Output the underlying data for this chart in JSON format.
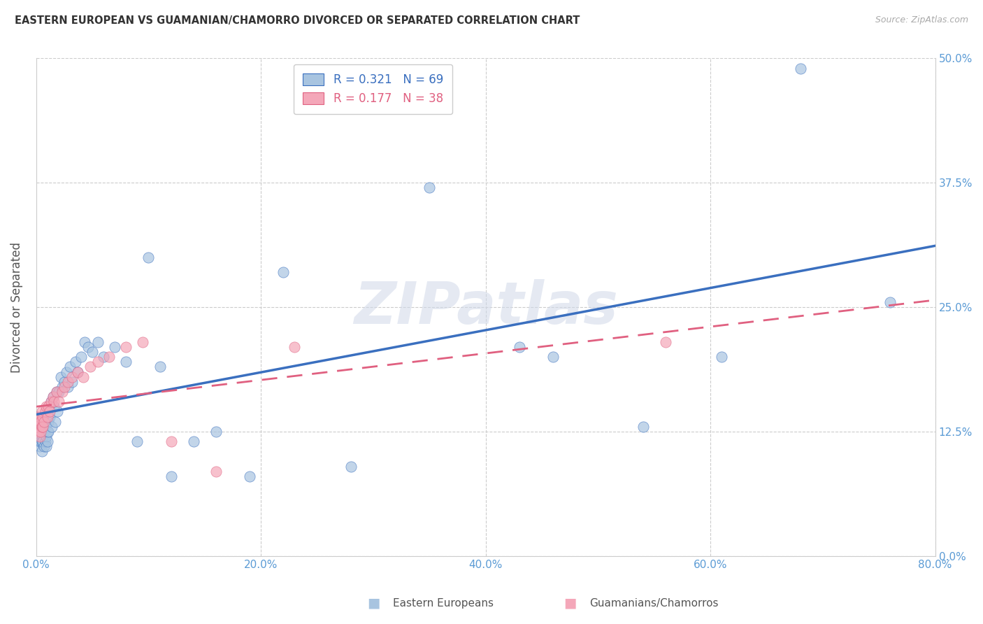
{
  "title": "EASTERN EUROPEAN VS GUAMANIAN/CHAMORRO DIVORCED OR SEPARATED CORRELATION CHART",
  "source": "Source: ZipAtlas.com",
  "ylabel": "Divorced or Separated",
  "legend_label1": "Eastern Europeans",
  "legend_label2": "Guamanians/Chamorros",
  "r1": "0.321",
  "n1": "69",
  "r2": "0.177",
  "n2": "38",
  "color1": "#a8c4e0",
  "color2": "#f4a7b9",
  "line_color1": "#3a6fbf",
  "line_color2": "#e06080",
  "axis_color": "#5b9bd5",
  "xlim": [
    0.0,
    0.8
  ],
  "ylim": [
    0.0,
    0.5
  ],
  "xticks": [
    0.0,
    0.2,
    0.4,
    0.6,
    0.8
  ],
  "yticks": [
    0.0,
    0.125,
    0.25,
    0.375,
    0.5
  ],
  "watermark": "ZIPatlas",
  "background_color": "#ffffff",
  "grid_color": "#cccccc",
  "eastern_european_x": [
    0.001,
    0.001,
    0.002,
    0.002,
    0.002,
    0.003,
    0.003,
    0.003,
    0.004,
    0.004,
    0.004,
    0.005,
    0.005,
    0.005,
    0.006,
    0.006,
    0.006,
    0.007,
    0.007,
    0.008,
    0.008,
    0.009,
    0.009,
    0.01,
    0.01,
    0.011,
    0.011,
    0.012,
    0.013,
    0.014,
    0.015,
    0.016,
    0.017,
    0.018,
    0.019,
    0.02,
    0.022,
    0.023,
    0.025,
    0.027,
    0.028,
    0.03,
    0.032,
    0.035,
    0.037,
    0.04,
    0.043,
    0.046,
    0.05,
    0.055,
    0.06,
    0.07,
    0.08,
    0.09,
    0.1,
    0.11,
    0.12,
    0.14,
    0.16,
    0.19,
    0.22,
    0.28,
    0.35,
    0.43,
    0.46,
    0.54,
    0.61,
    0.68,
    0.76
  ],
  "eastern_european_y": [
    0.14,
    0.135,
    0.13,
    0.12,
    0.115,
    0.125,
    0.115,
    0.11,
    0.13,
    0.12,
    0.115,
    0.125,
    0.115,
    0.105,
    0.13,
    0.12,
    0.115,
    0.125,
    0.11,
    0.13,
    0.115,
    0.12,
    0.11,
    0.125,
    0.115,
    0.135,
    0.125,
    0.14,
    0.155,
    0.13,
    0.16,
    0.15,
    0.135,
    0.165,
    0.145,
    0.165,
    0.18,
    0.17,
    0.175,
    0.185,
    0.17,
    0.19,
    0.175,
    0.195,
    0.185,
    0.2,
    0.215,
    0.21,
    0.205,
    0.215,
    0.2,
    0.21,
    0.195,
    0.115,
    0.3,
    0.19,
    0.08,
    0.115,
    0.125,
    0.08,
    0.285,
    0.09,
    0.37,
    0.21,
    0.2,
    0.13,
    0.2,
    0.49,
    0.255
  ],
  "guamanian_x": [
    0.001,
    0.001,
    0.002,
    0.002,
    0.003,
    0.003,
    0.004,
    0.004,
    0.005,
    0.005,
    0.006,
    0.006,
    0.007,
    0.008,
    0.009,
    0.01,
    0.011,
    0.012,
    0.013,
    0.015,
    0.016,
    0.018,
    0.02,
    0.023,
    0.025,
    0.028,
    0.032,
    0.037,
    0.042,
    0.048,
    0.055,
    0.065,
    0.08,
    0.095,
    0.12,
    0.16,
    0.23,
    0.56
  ],
  "guamanian_y": [
    0.14,
    0.13,
    0.135,
    0.125,
    0.14,
    0.12,
    0.135,
    0.125,
    0.145,
    0.13,
    0.14,
    0.13,
    0.135,
    0.145,
    0.15,
    0.14,
    0.15,
    0.145,
    0.155,
    0.16,
    0.155,
    0.165,
    0.155,
    0.165,
    0.17,
    0.175,
    0.18,
    0.185,
    0.18,
    0.19,
    0.195,
    0.2,
    0.21,
    0.215,
    0.115,
    0.085,
    0.21,
    0.215
  ]
}
